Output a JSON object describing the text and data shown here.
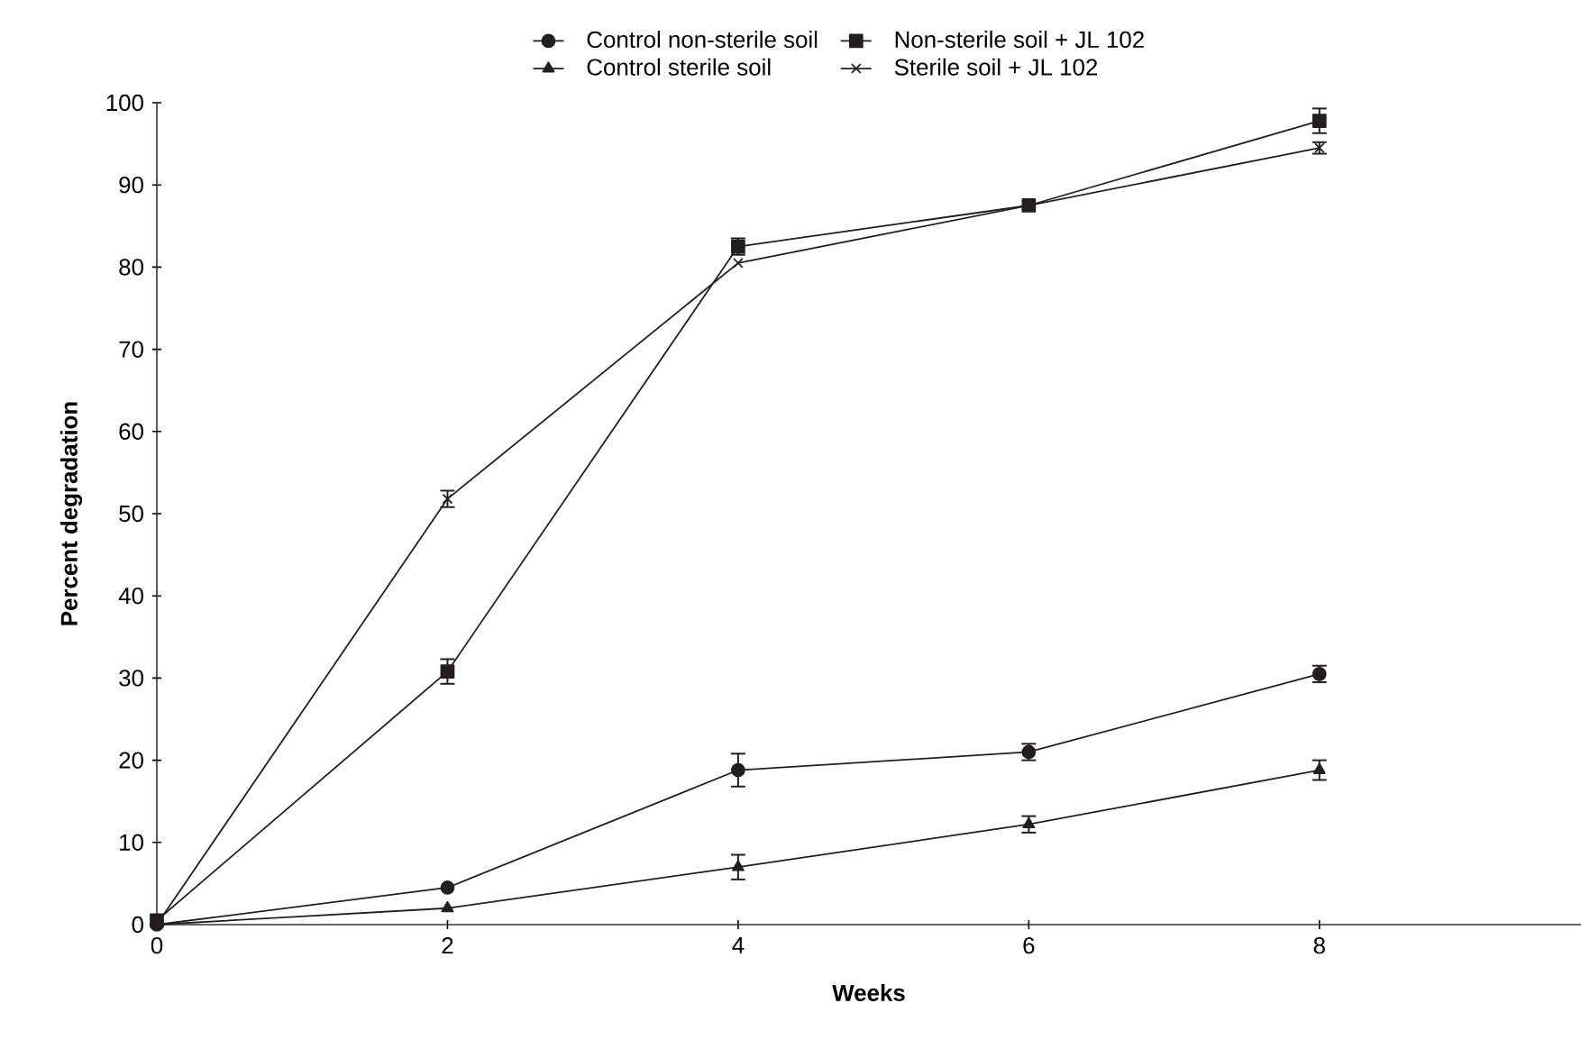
{
  "chart_data": {
    "type": "line",
    "xlabel": "Weeks",
    "ylabel": "Percent degradation",
    "x": [
      0,
      2,
      4,
      6,
      8
    ],
    "xlim": [
      0,
      9.8
    ],
    "xticks": [
      0,
      2,
      4,
      6,
      8
    ],
    "ylim": [
      0,
      100
    ],
    "yticks": [
      0,
      10,
      20,
      30,
      40,
      50,
      60,
      70,
      80,
      90,
      100
    ],
    "legend": "top",
    "grid": false,
    "line_style": "solid",
    "series": [
      {
        "name": "Control non-sterile soil",
        "color": "#231f20",
        "marker": "circle",
        "values": [
          0,
          4.5,
          18.8,
          21,
          30.5
        ],
        "errors": [
          null,
          null,
          2,
          1,
          1
        ]
      },
      {
        "name": "Non-sterile soil + JL 102",
        "color": "#231f20",
        "marker": "square",
        "values": [
          0.5,
          30.8,
          82.5,
          87.5,
          97.8
        ],
        "errors": [
          null,
          1.5,
          1,
          null,
          1.5
        ]
      },
      {
        "name": "Control sterile soil",
        "color": "#231f20",
        "marker": "triangle",
        "values": [
          0,
          2,
          7,
          12.2,
          18.8
        ],
        "errors": [
          null,
          null,
          1.5,
          1,
          1.2
        ]
      },
      {
        "name": "Sterile soil + JL 102",
        "color": "#231f20",
        "marker": "cross",
        "values": [
          0,
          51.8,
          80.5,
          87.5,
          94.5
        ],
        "errors": [
          null,
          1,
          null,
          null,
          0.7
        ]
      }
    ]
  }
}
